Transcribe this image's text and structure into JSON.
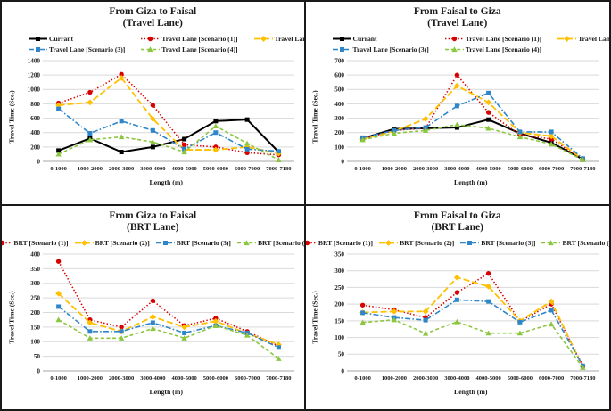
{
  "page": {
    "background": "#ffffff",
    "border_color": "#1a1a1a",
    "gridline_color": "#d9d9d9",
    "baseline_color": "#a6a6a6"
  },
  "chart_data": [
    {
      "type": "line",
      "title_line1": "From Giza to Faisal",
      "title_line2": "(Travel Lane)",
      "xlabel": "Length (m)",
      "ylabel": "Travel Time (Sec.)",
      "ylim": [
        0,
        1400
      ],
      "ystep": 200,
      "legend_rows": 2,
      "grid": true,
      "categories": [
        "0-1000",
        "1000-2000",
        "2000-3000",
        "3000-4000",
        "4000-5000",
        "5000-6000",
        "6000-7000",
        "7000-7180"
      ],
      "series": [
        {
          "name": "Currant",
          "color": "#000000",
          "dash": "solid",
          "marker": "square",
          "width": 2,
          "values": [
            150,
            320,
            130,
            200,
            310,
            560,
            580,
            130
          ]
        },
        {
          "name": "Travel Lane [Scenario (1)]",
          "color": "#d90000",
          "dash": "dotted",
          "marker": "circle",
          "width": 1.6,
          "values": [
            810,
            960,
            1210,
            780,
            230,
            200,
            120,
            90
          ]
        },
        {
          "name": "Travel Lane [Scenario (2)]",
          "color": "#ffc000",
          "dash": "longdash",
          "marker": "diamond",
          "width": 1.8,
          "values": [
            780,
            820,
            1160,
            590,
            160,
            160,
            200,
            110
          ]
        },
        {
          "name": "Travel Lane [Scenario (3)]",
          "color": "#2e86c8",
          "dash": "dashdot",
          "marker": "square",
          "width": 1.6,
          "values": [
            730,
            390,
            560,
            430,
            170,
            400,
            170,
            140
          ]
        },
        {
          "name": "Travel Lane [Scenario (4)]",
          "color": "#8cc63f",
          "dash": "dash",
          "marker": "triangle",
          "width": 1.6,
          "values": [
            100,
            300,
            340,
            270,
            130,
            490,
            250,
            20
          ]
        }
      ]
    },
    {
      "type": "line",
      "title_line1": "From Faisal to Giza",
      "title_line2": "(Travel Lane)",
      "xlabel": "Length (m)",
      "ylabel": "Travel Time (Sec.)",
      "ylim": [
        0,
        700
      ],
      "ystep": 100,
      "legend_rows": 2,
      "grid": true,
      "categories": [
        "0-1000",
        "1000-2000",
        "2000-3000",
        "3000-4000",
        "4000-5000",
        "5000-6000",
        "6000-7000",
        "7000-7180"
      ],
      "series": [
        {
          "name": "Currant",
          "color": "#000000",
          "dash": "solid",
          "marker": "square",
          "width": 2,
          "values": [
            160,
            225,
            230,
            235,
            290,
            195,
            130,
            15
          ]
        },
        {
          "name": "Travel Lane [Scenario (1)]",
          "color": "#d90000",
          "dash": "dotted",
          "marker": "circle",
          "width": 1.6,
          "values": [
            155,
            215,
            230,
            600,
            340,
            185,
            155,
            15
          ]
        },
        {
          "name": "Travel Lane [Scenario (2)]",
          "color": "#ffc000",
          "dash": "longdash",
          "marker": "diamond",
          "width": 1.8,
          "values": [
            155,
            210,
            295,
            525,
            410,
            200,
            175,
            15
          ]
        },
        {
          "name": "Travel Lane [Scenario (3)]",
          "color": "#2e86c8",
          "dash": "dashdot",
          "marker": "square",
          "width": 1.6,
          "values": [
            165,
            215,
            235,
            385,
            475,
            205,
            205,
            20
          ]
        },
        {
          "name": "Travel Lane [Scenario (4)]",
          "color": "#8cc63f",
          "dash": "dash",
          "marker": "triangle",
          "width": 1.6,
          "values": [
            150,
            195,
            215,
            255,
            230,
            170,
            120,
            10
          ]
        }
      ]
    },
    {
      "type": "line",
      "title_line1": "From Giza to Faisal",
      "title_line2": "(BRT Lane)",
      "xlabel": "Length (m)",
      "ylabel": "Travel Time (Sec.)",
      "ylim": [
        0,
        400
      ],
      "ystep": 50,
      "legend_rows": 1,
      "grid": true,
      "categories": [
        "0-1000",
        "1000-2000",
        "2000-3000",
        "3000-4000",
        "4000-5000",
        "5000-6000",
        "6000-7000",
        "7000-7180"
      ],
      "series": [
        {
          "name": "BRT [Scenario (1)]",
          "color": "#d90000",
          "dash": "dotted",
          "marker": "circle",
          "width": 1.6,
          "values": [
            375,
            175,
            150,
            240,
            155,
            180,
            135,
            85
          ]
        },
        {
          "name": "BRT [Scenario (2)]",
          "color": "#ffc000",
          "dash": "longdash",
          "marker": "diamond",
          "width": 1.8,
          "values": [
            265,
            165,
            135,
            185,
            150,
            170,
            128,
            90
          ]
        },
        {
          "name": "BRT [Scenario (3)]",
          "color": "#2e86c8",
          "dash": "dashdot",
          "marker": "square",
          "width": 1.6,
          "values": [
            220,
            135,
            135,
            165,
            130,
            155,
            130,
            80
          ]
        },
        {
          "name": "BRT [Scenario (4)]",
          "color": "#8cc63f",
          "dash": "dash",
          "marker": "triangle",
          "width": 1.6,
          "values": [
            175,
            112,
            112,
            145,
            112,
            155,
            122,
            42
          ]
        }
      ]
    },
    {
      "type": "line",
      "title_line1": "From Faisal to Giza",
      "title_line2": "(BRT Lane)",
      "xlabel": "Length (m)",
      "ylabel": "Travel Time (Sec.)",
      "ylim": [
        0,
        350
      ],
      "ystep": 50,
      "legend_rows": 1,
      "grid": true,
      "categories": [
        "0-1000",
        "1000-2000",
        "2000-3000",
        "3000-4000",
        "4000-5000",
        "5000-6000",
        "6000-7000",
        "7000-7180"
      ],
      "series": [
        {
          "name": "BRT [Scenario (1)]",
          "color": "#d90000",
          "dash": "dotted",
          "marker": "circle",
          "width": 1.6,
          "values": [
            197,
            183,
            160,
            235,
            292,
            148,
            200,
            15
          ]
        },
        {
          "name": "BRT [Scenario (2)]",
          "color": "#ffc000",
          "dash": "longdash",
          "marker": "diamond",
          "width": 1.8,
          "values": [
            175,
            178,
            178,
            280,
            253,
            150,
            208,
            12
          ]
        },
        {
          "name": "BRT [Scenario (3)]",
          "color": "#2e86c8",
          "dash": "dashdot",
          "marker": "square",
          "width": 1.6,
          "values": [
            174,
            160,
            152,
            213,
            208,
            146,
            182,
            15
          ]
        },
        {
          "name": "BRT [Scenario (4)]",
          "color": "#8cc63f",
          "dash": "dash",
          "marker": "triangle",
          "width": 1.6,
          "values": [
            145,
            153,
            112,
            147,
            113,
            113,
            140,
            10
          ]
        }
      ]
    }
  ]
}
